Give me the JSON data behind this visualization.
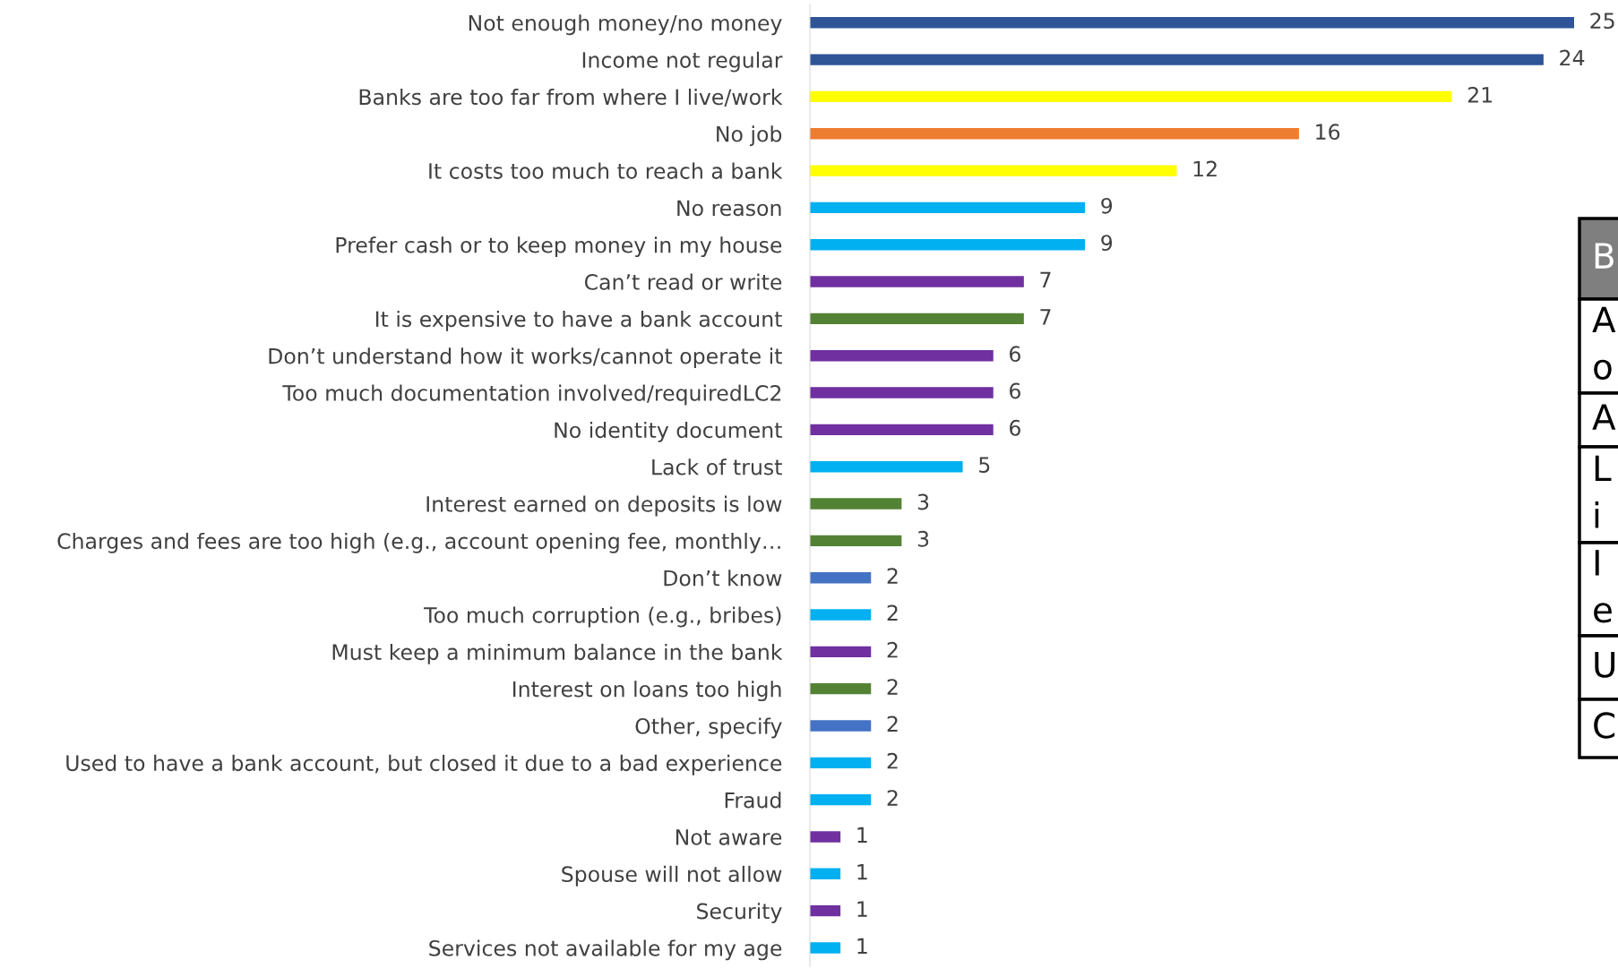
{
  "chart_data": {
    "type": "bar",
    "orientation": "horizontal",
    "data_labels": true,
    "grid": false,
    "categories": [
      "Not enough money/no money",
      "Income not regular",
      "Banks are too far from where I live/work",
      "No job",
      "It costs too much to reach a bank",
      "No reason",
      "Prefer cash or to keep money in my house",
      "Can’t read or write",
      "It is expensive to have a bank account",
      "Don’t understand how it works/cannot operate it",
      "Too much documentation involved/requiredLC2",
      "No identity document",
      "Lack of trust",
      "Interest earned on deposits is low",
      "Charges and fees are too high (e.g., account opening fee, monthly…",
      "Don’t know",
      "Too much corruption (e.g., bribes)",
      "Must keep a minimum balance in the bank",
      "Interest on loans too high",
      "Other, specify",
      "Used to have a bank account, but closed it due to a bad experience",
      "Fraud",
      "Not aware",
      "Spouse will not allow",
      "Security",
      "Services not available for my age"
    ],
    "values": [
      25,
      24,
      21,
      16,
      12,
      9,
      9,
      7,
      7,
      6,
      6,
      6,
      5,
      3,
      3,
      2,
      2,
      2,
      2,
      2,
      2,
      2,
      1,
      1,
      1,
      1
    ],
    "colors": [
      "#2f5597",
      "#2f5597",
      "#ffff00",
      "#ed7d31",
      "#ffff00",
      "#00b0f0",
      "#00b0f0",
      "#7030a0",
      "#548235",
      "#7030a0",
      "#7030a0",
      "#7030a0",
      "#00b0f0",
      "#548235",
      "#548235",
      "#4472c4",
      "#00b0f0",
      "#7030a0",
      "#548235",
      "#4472c4",
      "#00b0f0",
      "#00b0f0",
      "#7030a0",
      "#00b0f0",
      "#7030a0",
      "#00b0f0"
    ],
    "annotations": [
      "B",
      "A\no",
      "A",
      "L\ni",
      "I\ne",
      "U",
      "C"
    ]
  }
}
